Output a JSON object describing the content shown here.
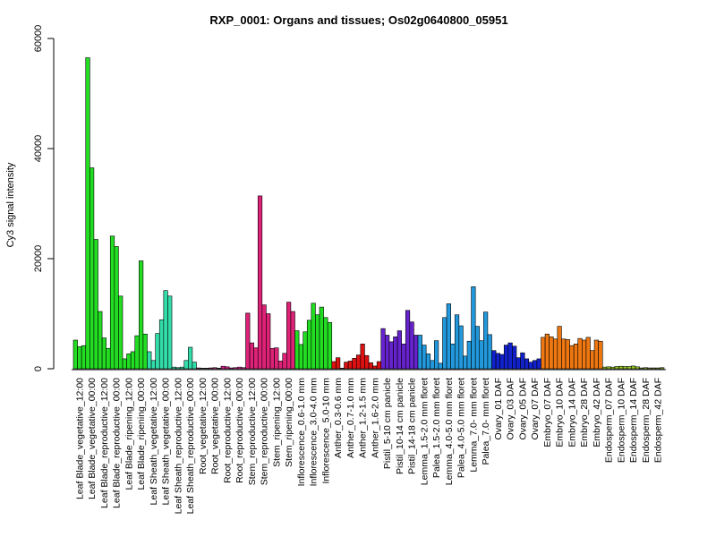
{
  "chart_data": {
    "type": "bar",
    "title": "RXP_0001: Organs and tissues; Os02g0640800_05951",
    "ylabel": "Cy3 signal intensity",
    "xlabel": "",
    "ylim": [
      0,
      60000
    ],
    "yticks": [
      0,
      20000,
      40000,
      60000
    ],
    "grid": false,
    "legend": "none",
    "groups": [
      {
        "label": "Leaf Blade_vegetative_12:00",
        "color": "#22dd22",
        "values": [
          5200,
          4000,
          4200
        ]
      },
      {
        "label": "Leaf Blade_vegetative_00:00",
        "color": "#22dd22",
        "values": [
          56500,
          36500,
          23500
        ]
      },
      {
        "label": "Leaf Blade_reproductive_12:00",
        "color": "#22dd22",
        "values": [
          10400,
          5600,
          3700
        ]
      },
      {
        "label": "Leaf Blade_reproductive_00:00",
        "color": "#22dd22",
        "values": [
          24100,
          22200,
          13200
        ]
      },
      {
        "label": "Leaf Blade_ripening_12:00",
        "color": "#22dd22",
        "values": [
          1800,
          2700,
          3100
        ]
      },
      {
        "label": "Leaf Blade_ripening_00:00",
        "color": "#22dd22",
        "values": [
          6000,
          19600,
          6300
        ]
      },
      {
        "label": "Leaf Sheath_vegetative_12:00",
        "color": "#33ddaa",
        "values": [
          3100,
          1500,
          6400
        ]
      },
      {
        "label": "Leaf Sheath_vegetative_00:00",
        "color": "#33ddaa",
        "values": [
          8900,
          14200,
          13200
        ]
      },
      {
        "label": "Leaf Sheath_reproductive_12:00",
        "color": "#33ddaa",
        "values": [
          300,
          200,
          300
        ]
      },
      {
        "label": "Leaf Sheath_reproductive_00:00",
        "color": "#33ddaa",
        "values": [
          1500,
          3900,
          1200
        ]
      },
      {
        "label": "Root_vegetative_12:00",
        "color": "#dd2299",
        "values": [
          150,
          100,
          100
        ]
      },
      {
        "label": "Root_vegetative_00:00",
        "color": "#dd2299",
        "values": [
          150,
          200,
          100
        ]
      },
      {
        "label": "Root_reproductive_12:00",
        "color": "#dd2299",
        "values": [
          450,
          350,
          150
        ]
      },
      {
        "label": "Root_reproductive_00:00",
        "color": "#dd2299",
        "values": [
          200,
          300,
          200
        ]
      },
      {
        "label": "Stem_reproductive_12:00",
        "color": "#dd2277",
        "values": [
          10100,
          4700,
          3800
        ]
      },
      {
        "label": "Stem_reproductive_00:00",
        "color": "#dd2277",
        "values": [
          31400,
          11600,
          10000
        ]
      },
      {
        "label": "Stem_ripening_12:00",
        "color": "#dd2277",
        "values": [
          3700,
          3800,
          1400
        ]
      },
      {
        "label": "Stem_ripening_00:00",
        "color": "#dd2277",
        "values": [
          2800,
          12100,
          10400
        ]
      },
      {
        "label": "Inflorescence_0.6-1.0 mm",
        "color": "#22dd22",
        "values": [
          6900,
          4400,
          6700
        ]
      },
      {
        "label": "Inflorescence_3.0-4.0 mm",
        "color": "#22dd22",
        "values": [
          8800,
          11900,
          9800
        ]
      },
      {
        "label": "Inflorescence_5.0-10 mm",
        "color": "#22dd22",
        "values": [
          11200,
          9300,
          8400
        ]
      },
      {
        "label": "Anther_0.3-0.6 mm",
        "color": "#dd1111",
        "values": [
          1300,
          2000,
          100
        ]
      },
      {
        "label": "Anther_0.7-1.0 mm",
        "color": "#dd1111",
        "values": [
          1200,
          1400,
          1900
        ]
      },
      {
        "label": "Anther_1.2-1.5 mm",
        "color": "#dd1111",
        "values": [
          2500,
          4500,
          2400
        ]
      },
      {
        "label": "Anther_1.6-2.0 mm",
        "color": "#dd1111",
        "values": [
          1100,
          500,
          1300
        ]
      },
      {
        "label": "Pistil_5-10 cm panicle",
        "color": "#6622cc",
        "values": [
          7300,
          6100,
          4900
        ]
      },
      {
        "label": "Pistil_10-14 cm panicle",
        "color": "#6622cc",
        "values": [
          5800,
          6900,
          4500
        ]
      },
      {
        "label": "Pistil_14-18 cm panicle",
        "color": "#6622cc",
        "values": [
          10600,
          8500,
          6100
        ]
      },
      {
        "label": "Lemma_1.5-2.0 mm floret",
        "color": "#2299dd",
        "values": [
          6100,
          4300,
          2700
        ]
      },
      {
        "label": "Palea_1.5-2.0 mm floret",
        "color": "#2299dd",
        "values": [
          1500,
          5100,
          1000
        ]
      },
      {
        "label": "Lemma_4.0-5.0 mm floret",
        "color": "#2299dd",
        "values": [
          9300,
          11800,
          4500
        ]
      },
      {
        "label": "Palea_4.0-5.0 mm floret",
        "color": "#2299dd",
        "values": [
          9800,
          7800,
          2300
        ]
      },
      {
        "label": "Lemma_7.0- mm floret",
        "color": "#2299dd",
        "values": [
          5000,
          14900,
          7700
        ]
      },
      {
        "label": "Palea_7.0- mm floret",
        "color": "#2299dd",
        "values": [
          5100,
          10300,
          6200
        ]
      },
      {
        "label": "Ovary_01 DAF",
        "color": "#1122cc",
        "values": [
          3300,
          2800,
          2600
        ]
      },
      {
        "label": "Ovary_03 DAF",
        "color": "#1122cc",
        "values": [
          4300,
          4700,
          4100
        ]
      },
      {
        "label": "Ovary_05 DAF",
        "color": "#1122cc",
        "values": [
          2000,
          2900,
          1800
        ]
      },
      {
        "label": "Ovary_07 DAF",
        "color": "#1122cc",
        "values": [
          1200,
          1500,
          1800
        ]
      },
      {
        "label": "Embryo_07 DAF",
        "color": "#ee7711",
        "values": [
          5700,
          6300,
          5800
        ]
      },
      {
        "label": "Embryo_10 DAF",
        "color": "#ee7711",
        "values": [
          5400,
          7700,
          5400
        ]
      },
      {
        "label": "Embryo_14 DAF",
        "color": "#ee7711",
        "values": [
          5300,
          4200,
          4500
        ]
      },
      {
        "label": "Embryo_28 DAF",
        "color": "#ee7711",
        "values": [
          5500,
          5200,
          5700
        ]
      },
      {
        "label": "Embryo_42 DAF",
        "color": "#ee7711",
        "values": [
          3300,
          5200,
          5000
        ]
      },
      {
        "label": "Endosperm_07 DAF",
        "color": "#99cc22",
        "values": [
          300,
          350,
          300
        ]
      },
      {
        "label": "Endosperm_10 DAF",
        "color": "#99cc22",
        "values": [
          400,
          450,
          400
        ]
      },
      {
        "label": "Endosperm_14 DAF",
        "color": "#99cc22",
        "values": [
          400,
          500,
          350
        ]
      },
      {
        "label": "Endosperm_28 DAF",
        "color": "#99cc22",
        "values": [
          150,
          200,
          150
        ]
      },
      {
        "label": "Endosperm_42 DAF",
        "color": "#99cc22",
        "values": [
          150,
          150,
          200
        ]
      }
    ],
    "label_every": 2
  }
}
